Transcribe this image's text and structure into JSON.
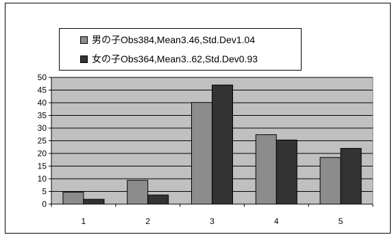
{
  "chart_data": {
    "type": "bar",
    "categories": [
      "1",
      "2",
      "3",
      "4",
      "5"
    ],
    "series": [
      {
        "name": "男の子Obs384,Mean3.46,Std.Dev1.04",
        "values": [
          4.7,
          9.4,
          40.1,
          27.4,
          18.4
        ],
        "color": "#8c8c8c"
      },
      {
        "name": "女の子Obs364,Mean3..62,Std.Dev0.93",
        "values": [
          1.9,
          3.6,
          47.0,
          25.3,
          22.0
        ],
        "color": "#333333"
      }
    ],
    "title": "",
    "xlabel": "",
    "ylabel": "",
    "ylim": [
      0,
      50
    ],
    "yticks": [
      "0",
      "5",
      "10",
      "15",
      "20",
      "25",
      "30",
      "35",
      "40",
      "45",
      "50"
    ],
    "grid": true,
    "plot_background": "#c0c0c0",
    "legend_position": "top-left"
  }
}
